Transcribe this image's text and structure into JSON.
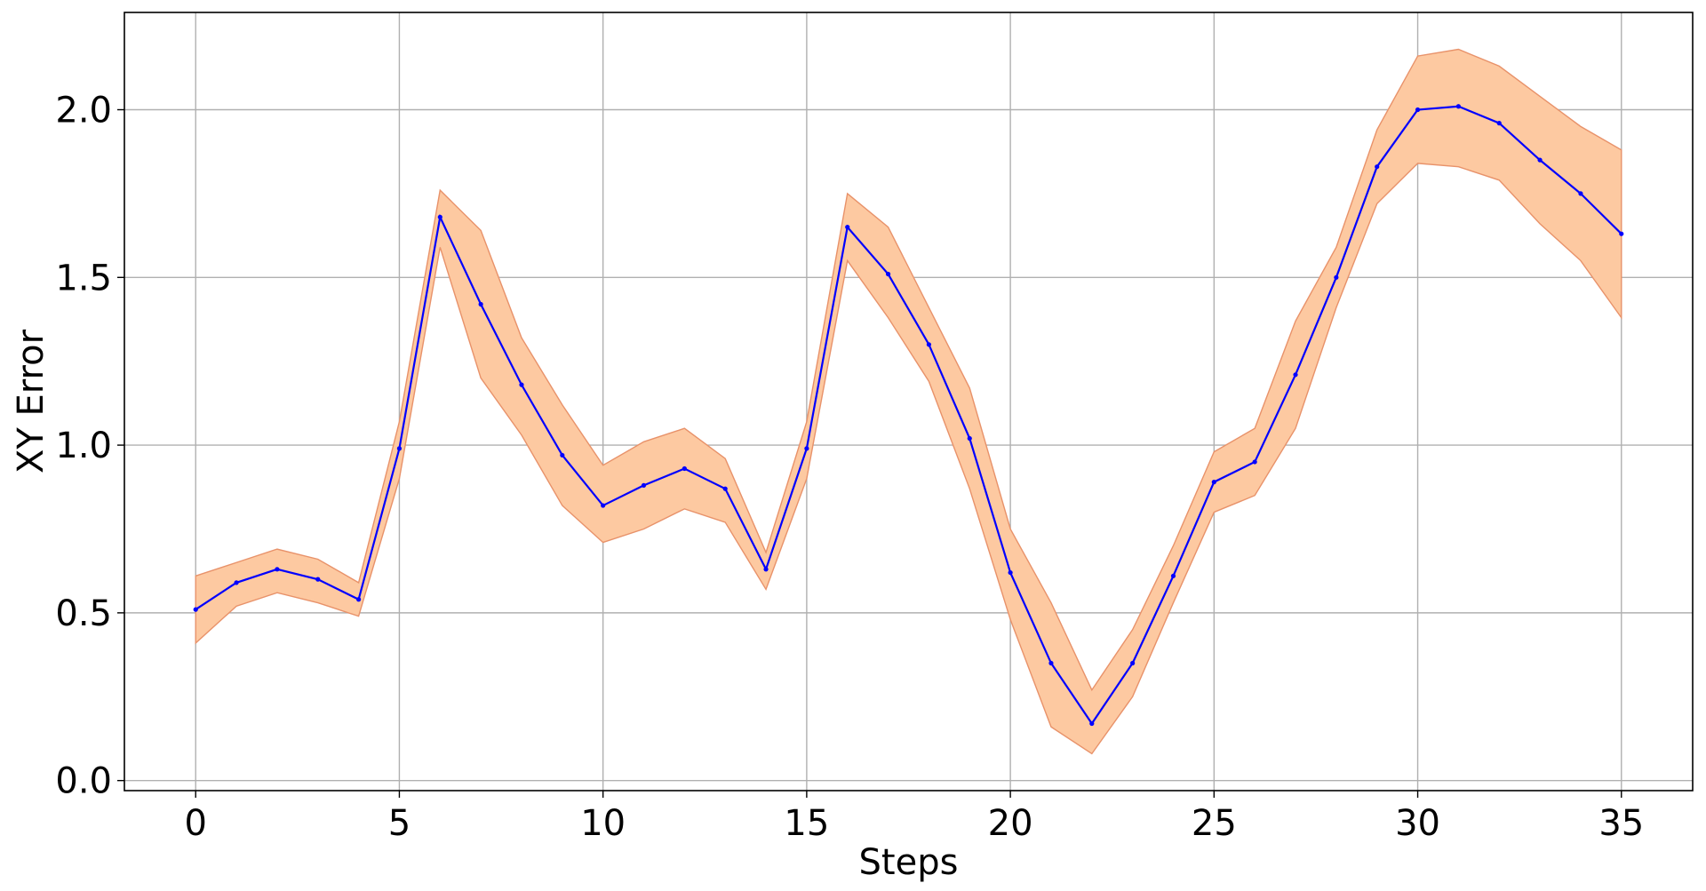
{
  "chart_data": {
    "type": "line",
    "title": "",
    "xlabel": "Steps",
    "ylabel": "XY Error",
    "xlim": [
      -1.75,
      36.75
    ],
    "ylim": [
      -0.03,
      2.29
    ],
    "xticks": [
      0,
      5,
      10,
      15,
      20,
      25,
      30,
      35
    ],
    "xtick_labels": [
      "0",
      "5",
      "10",
      "15",
      "20",
      "25",
      "30",
      "35"
    ],
    "yticks": [
      0.0,
      0.5,
      1.0,
      1.5,
      2.0
    ],
    "ytick_labels": [
      "0.0",
      "0.5",
      "1.0",
      "1.5",
      "2.0"
    ],
    "grid": true,
    "legend": false,
    "colors": {
      "line": "#0000ff",
      "band_fill": "#fdc9a1",
      "band_edge": "#e8926a"
    },
    "x": [
      0,
      1,
      2,
      3,
      4,
      5,
      6,
      7,
      8,
      9,
      10,
      11,
      12,
      13,
      14,
      15,
      16,
      17,
      18,
      19,
      20,
      21,
      22,
      23,
      24,
      25,
      26,
      27,
      28,
      29,
      30,
      31,
      32,
      33,
      34,
      35
    ],
    "series": [
      {
        "values": [
          0.51,
          0.59,
          0.63,
          0.6,
          0.54,
          0.99,
          1.68,
          1.42,
          1.18,
          0.97,
          0.82,
          0.88,
          0.93,
          0.87,
          0.63,
          0.99,
          1.65,
          1.51,
          1.3,
          1.02,
          0.62,
          0.35,
          0.17,
          0.35,
          0.61,
          0.89,
          0.95,
          1.21,
          1.5,
          1.83,
          2.0,
          2.01,
          1.96,
          1.85,
          1.75,
          1.63
        ],
        "lower": [
          0.41,
          0.52,
          0.56,
          0.53,
          0.49,
          0.9,
          1.59,
          1.2,
          1.03,
          0.82,
          0.71,
          0.75,
          0.81,
          0.77,
          0.57,
          0.9,
          1.55,
          1.38,
          1.19,
          0.87,
          0.48,
          0.16,
          0.08,
          0.25,
          0.53,
          0.8,
          0.85,
          1.05,
          1.41,
          1.72,
          1.84,
          1.83,
          1.79,
          1.66,
          1.55,
          1.38
        ],
        "upper": [
          0.61,
          0.65,
          0.69,
          0.66,
          0.59,
          1.07,
          1.76,
          1.64,
          1.32,
          1.12,
          0.94,
          1.01,
          1.05,
          0.96,
          0.68,
          1.07,
          1.75,
          1.65,
          1.41,
          1.17,
          0.75,
          0.53,
          0.27,
          0.45,
          0.7,
          0.98,
          1.05,
          1.37,
          1.59,
          1.94,
          2.16,
          2.18,
          2.13,
          2.04,
          1.95,
          1.88
        ]
      }
    ]
  }
}
